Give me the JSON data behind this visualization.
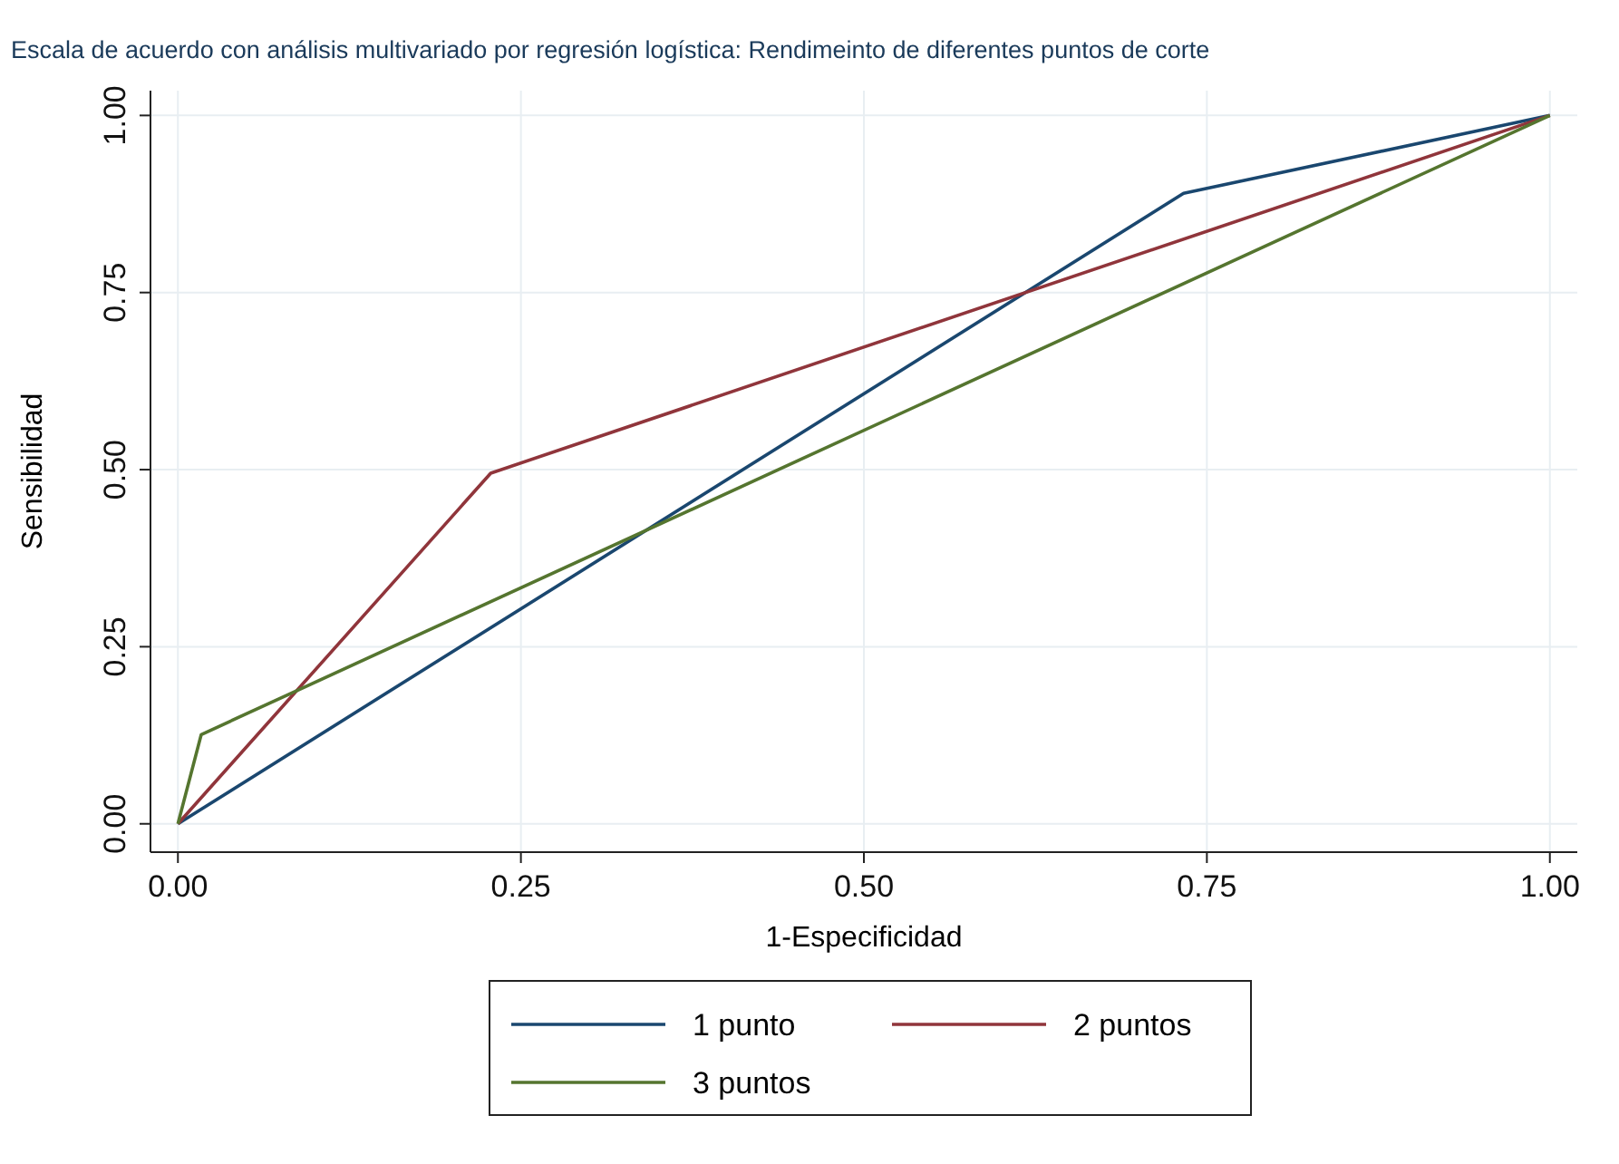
{
  "chart_data": {
    "type": "line",
    "title": "Escala de acuerdo con análisis multivariado por regresión logística: Rendimeinto de diferentes puntos de corte",
    "xlabel": "1-Especificidad",
    "ylabel": "Sensibilidad",
    "xlim": [
      -0.02,
      1.02
    ],
    "ylim": [
      -0.04,
      1.035
    ],
    "xticks": [
      {
        "value": 0,
        "label": "0.00"
      },
      {
        "value": 0.25,
        "label": "0.25"
      },
      {
        "value": 0.5,
        "label": "0.50"
      },
      {
        "value": 0.75,
        "label": "0.75"
      },
      {
        "value": 1,
        "label": "1.00"
      }
    ],
    "yticks": [
      {
        "value": 0,
        "label": "0.00"
      },
      {
        "value": 0.25,
        "label": "0.25"
      },
      {
        "value": 0.5,
        "label": "0.50"
      },
      {
        "value": 0.75,
        "label": "0.75"
      },
      {
        "value": 1,
        "label": "1.00"
      }
    ],
    "grid": true,
    "legend": "bottom",
    "line_style": "solid",
    "marker": "none",
    "series": [
      {
        "name": "1 punto",
        "color": "#1a476f",
        "x": [
          0,
          0.733,
          1
        ],
        "values": [
          0,
          0.89,
          1
        ]
      },
      {
        "name": "2 puntos",
        "color": "#90353b",
        "x": [
          0,
          0.228,
          1
        ],
        "values": [
          0,
          0.495,
          1
        ]
      },
      {
        "name": "3 puntos",
        "color": "#55752f",
        "x": [
          0,
          0.017,
          1
        ],
        "values": [
          0,
          0.126,
          1
        ]
      }
    ]
  }
}
